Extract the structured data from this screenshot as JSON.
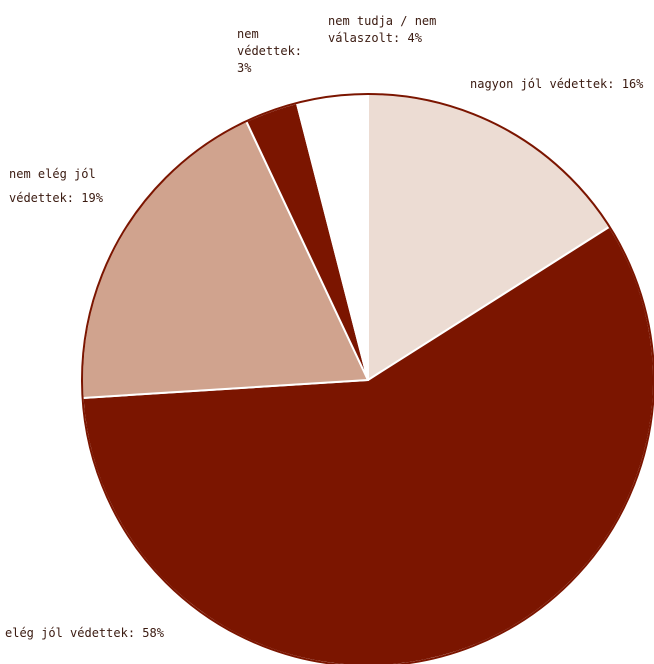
{
  "chart_data": {
    "type": "pie",
    "slices": [
      {
        "label": "nagyon jól védettek",
        "value": 16,
        "color": "#ecdcd3",
        "display": [
          "nagyon jól védettek:  16%"
        ]
      },
      {
        "label": "elég jól védettek",
        "value": 58,
        "color": "#7b1500",
        "display": [
          "elég jól védettek:  58%"
        ]
      },
      {
        "label": "nem elég jól védettek",
        "value": 19,
        "color": "#d0a38e",
        "display": [
          "nem elég jól",
          "védettek:  19%"
        ]
      },
      {
        "label": "nem védettek",
        "value": 3,
        "color": "#7b1500",
        "display": [
          "nem",
          "védettek:",
          "3%"
        ]
      },
      {
        "label": "nem tudja / nem válaszolt",
        "value": 4,
        "color": "#ffffff",
        "display": [
          "nem tudja / nem",
          "válaszolt:  4%"
        ]
      }
    ],
    "start": "12 o'clock",
    "direction": "clockwise",
    "outline_color": "#7b1500"
  }
}
